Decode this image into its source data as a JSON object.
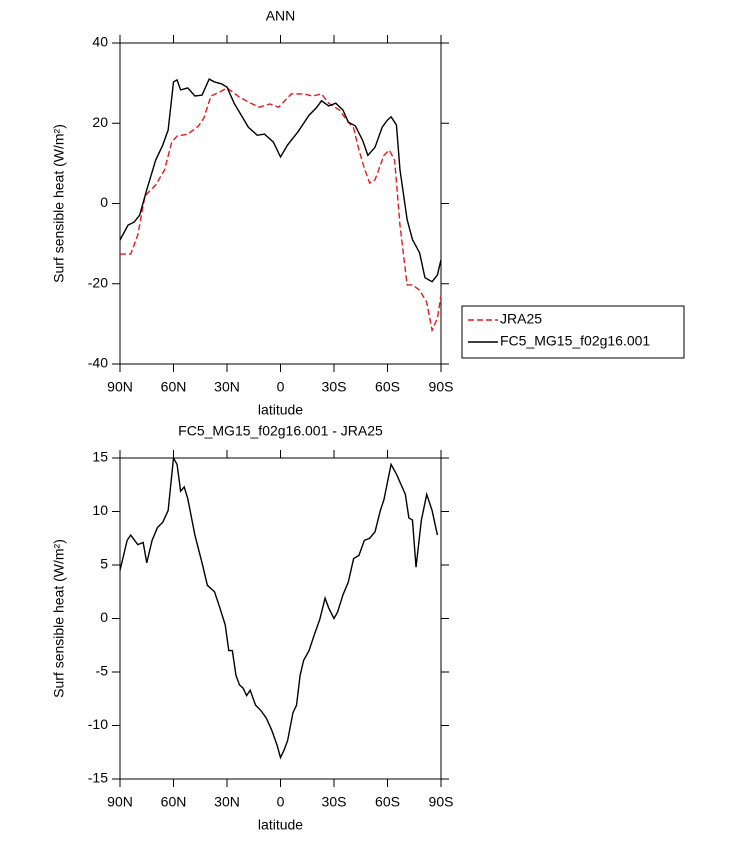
{
  "chart_data": [
    {
      "type": "line",
      "title": "ANN",
      "xlabel": "latitude",
      "ylabel": "Surf sensible heat (W/m²)",
      "xlim": [
        90,
        -90
      ],
      "ylim": [
        -40,
        40
      ],
      "xticks": [
        {
          "value": 90,
          "label": "90N"
        },
        {
          "value": 60,
          "label": "60N"
        },
        {
          "value": 30,
          "label": "30N"
        },
        0,
        {
          "value": -30,
          "label": "30S"
        },
        {
          "value": -60,
          "label": "60S"
        },
        {
          "value": -90,
          "label": "90S"
        }
      ],
      "yticks": [
        -40,
        -20,
        0,
        20,
        40
      ],
      "legend": "right",
      "series": [
        {
          "name": "JRA25",
          "color": "#e41a1c",
          "dashed": true,
          "x": [
            90,
            84,
            80,
            76,
            70,
            65,
            61,
            58,
            52,
            46,
            43,
            39,
            34,
            30,
            23,
            18,
            12,
            6,
            1,
            -6,
            -13,
            -18,
            -23,
            -27,
            -33,
            -38,
            -41,
            -44,
            -47,
            -50,
            -53,
            -58,
            -61,
            -64,
            -67,
            -71,
            -74,
            -78,
            -82,
            -85,
            -88,
            -90
          ],
          "values": [
            -12.6,
            -12.6,
            -7.8,
            1.9,
            4.6,
            8.4,
            15.3,
            16.8,
            17.3,
            19.3,
            21.3,
            26.8,
            27.8,
            28.8,
            26.5,
            25.3,
            24,
            24.8,
            24,
            27.3,
            27.3,
            26.8,
            27.3,
            25,
            23.3,
            20.3,
            18.8,
            13.3,
            8.8,
            5.1,
            5.9,
            12,
            13.3,
            10.8,
            -5.4,
            -20.3,
            -20.3,
            -21.6,
            -24.6,
            -31.6,
            -28.6,
            -22.8
          ]
        },
        {
          "name": "FC5_MG15_f02g16.001",
          "color": "#000000",
          "dashed": false,
          "x": [
            90,
            85.5,
            82,
            79,
            75,
            70,
            66,
            63,
            60,
            58,
            56,
            52,
            48,
            44,
            40,
            37,
            33,
            30,
            26,
            22,
            18,
            13,
            9,
            4,
            0,
            -4,
            -10,
            -16,
            -20,
            -23,
            -27,
            -31,
            -35,
            -38,
            -42,
            -46,
            -49,
            -53,
            -57,
            -60,
            -62,
            -65,
            -67,
            -71,
            -74,
            -78,
            -81,
            -85,
            -88,
            -90
          ],
          "values": [
            -9.1,
            -5.4,
            -4.6,
            -2.9,
            3.4,
            10.8,
            14.6,
            18.3,
            30.3,
            30.8,
            28.3,
            28.8,
            26.8,
            27,
            31,
            30.3,
            29.8,
            29,
            25,
            22,
            19,
            17,
            17.3,
            15.3,
            11.6,
            14.6,
            18,
            22,
            23.8,
            25.6,
            24.3,
            25,
            23.3,
            20.3,
            19.3,
            15.8,
            12,
            14,
            19,
            20.8,
            21.6,
            19.6,
            8.4,
            -4,
            -9,
            -12.3,
            -18.5,
            -19.5,
            -17.8,
            -14
          ]
        }
      ]
    },
    {
      "type": "line",
      "title": "FC5_MG15_f02g16.001 - JRA25",
      "xlabel": "latitude",
      "ylabel": "Surf sensible heat (W/m²)",
      "xlim": [
        90,
        -90
      ],
      "ylim": [
        -15,
        15
      ],
      "xticks": [
        {
          "value": 90,
          "label": "90N"
        },
        {
          "value": 60,
          "label": "60N"
        },
        {
          "value": 30,
          "label": "30N"
        },
        0,
        {
          "value": -30,
          "label": "30S"
        },
        {
          "value": -60,
          "label": "60S"
        },
        {
          "value": -90,
          "label": "90S"
        }
      ],
      "yticks": [
        -15,
        -10,
        -5,
        0,
        5,
        10,
        15
      ],
      "color": "#000000",
      "x": [
        90,
        86,
        84,
        80,
        77,
        75,
        72,
        69,
        66,
        63,
        60,
        58,
        56,
        54,
        52,
        48,
        44,
        41,
        37,
        34,
        31,
        29,
        27,
        25,
        23,
        21,
        19,
        17,
        14,
        11,
        8,
        5,
        2,
        0,
        -2,
        -4,
        -7,
        -9,
        -11,
        -13,
        -16,
        -19,
        -22,
        -25,
        -27,
        -30,
        -32,
        -35,
        -38,
        -41,
        -44,
        -47,
        -50,
        -53,
        -56,
        -58,
        -62,
        -65,
        -70,
        -72,
        -74,
        -76,
        -79,
        -82,
        -85,
        -88
      ],
      "values": [
        4.5,
        7.3,
        7.8,
        6.9,
        7.1,
        5.2,
        7.3,
        8.5,
        9.0,
        10.1,
        15,
        14.4,
        11.9,
        12.3,
        11.2,
        7.8,
        5.2,
        3.1,
        2.5,
        1.0,
        -0.6,
        -3.0,
        -3.0,
        -5.3,
        -6.2,
        -6.5,
        -7.2,
        -6.7,
        -8.1,
        -8.6,
        -9.3,
        -10.4,
        -11.8,
        -13,
        -12.3,
        -11.4,
        -8.8,
        -8.1,
        -5.3,
        -3.9,
        -3.0,
        -1.5,
        -0.1,
        1.9,
        1.0,
        0,
        0.6,
        2.2,
        3.4,
        5.6,
        5.9,
        7.3,
        7.5,
        8.1,
        10.1,
        11.1,
        14.4,
        13.5,
        11.6,
        9.4,
        9.2,
        4.8,
        9.2,
        11.6,
        10.1,
        7.8
      ]
    }
  ]
}
